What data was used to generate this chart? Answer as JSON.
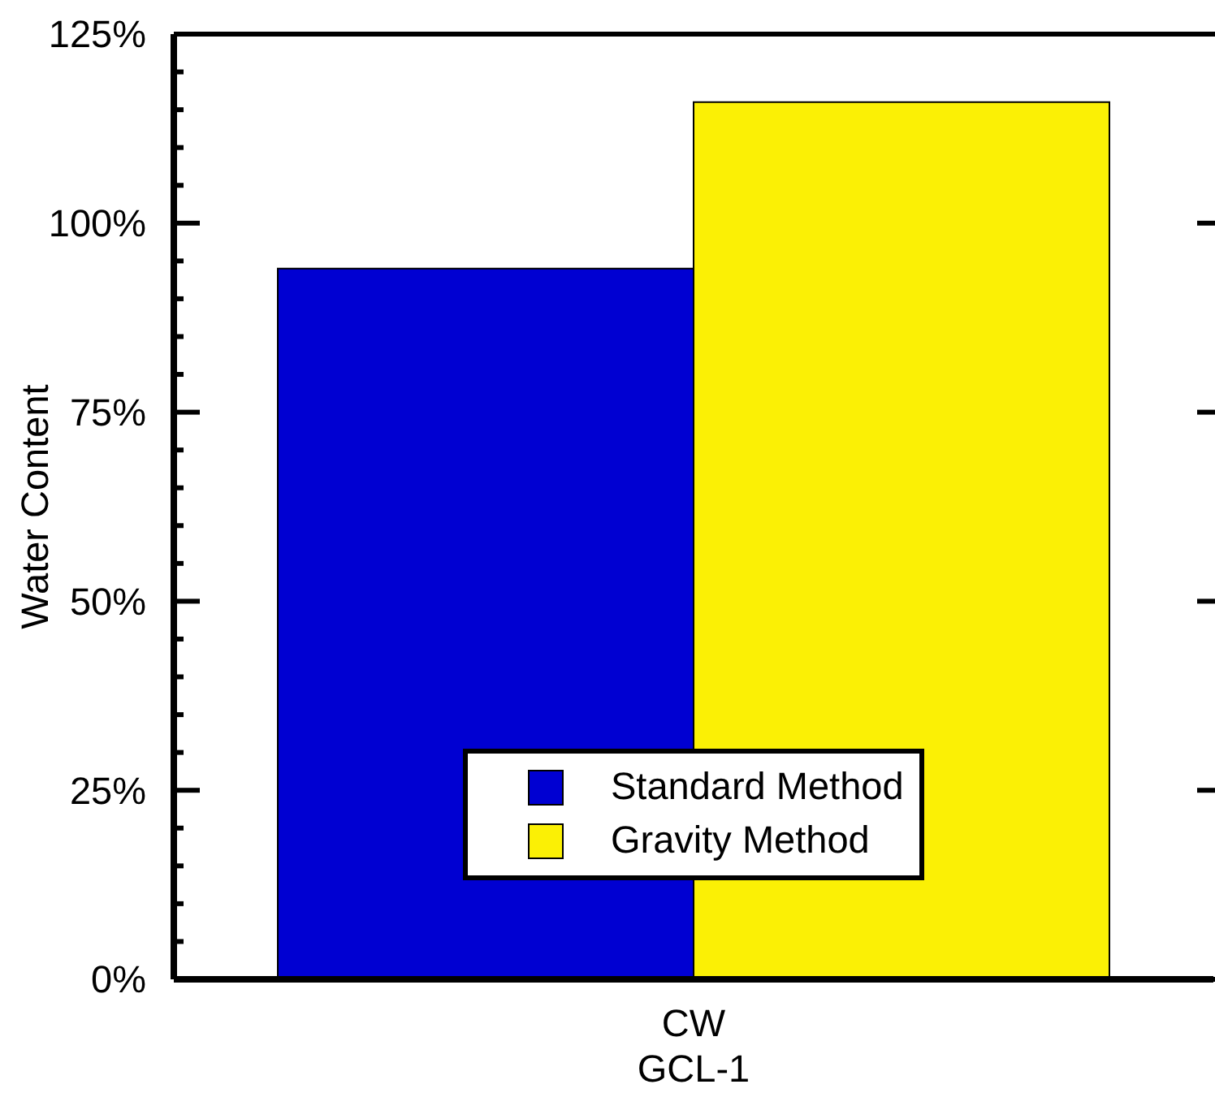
{
  "chart_data": {
    "type": "bar",
    "xlabel": "GCL-1",
    "ylabel": "Water Content",
    "categories": [
      "CW"
    ],
    "series": [
      {
        "name": "Standard Method",
        "color": "#0000d2",
        "values": [
          94
        ]
      },
      {
        "name": "Gravity Method",
        "color": "#fbf005",
        "values": [
          116
        ]
      }
    ],
    "ylim": [
      0,
      125
    ],
    "yticks": [
      {
        "value": 0,
        "label": "0%"
      },
      {
        "value": 5,
        "label": null
      },
      {
        "value": 10,
        "label": null
      },
      {
        "value": 15,
        "label": null
      },
      {
        "value": 20,
        "label": null
      },
      {
        "value": 25,
        "label": "25%"
      },
      {
        "value": 30,
        "label": null
      },
      {
        "value": 35,
        "label": null
      },
      {
        "value": 40,
        "label": null
      },
      {
        "value": 45,
        "label": null
      },
      {
        "value": 50,
        "label": "50%"
      },
      {
        "value": 55,
        "label": null
      },
      {
        "value": 60,
        "label": null
      },
      {
        "value": 65,
        "label": null
      },
      {
        "value": 70,
        "label": null
      },
      {
        "value": 75,
        "label": "75%"
      },
      {
        "value": 80,
        "label": null
      },
      {
        "value": 85,
        "label": null
      },
      {
        "value": 90,
        "label": null
      },
      {
        "value": 95,
        "label": null
      },
      {
        "value": 100,
        "label": "100%"
      },
      {
        "value": 105,
        "label": null
      },
      {
        "value": 110,
        "label": null
      },
      {
        "value": 115,
        "label": null
      },
      {
        "value": 120,
        "label": null
      },
      {
        "value": 125,
        "label": "125%"
      }
    ],
    "legend": "bottom"
  }
}
